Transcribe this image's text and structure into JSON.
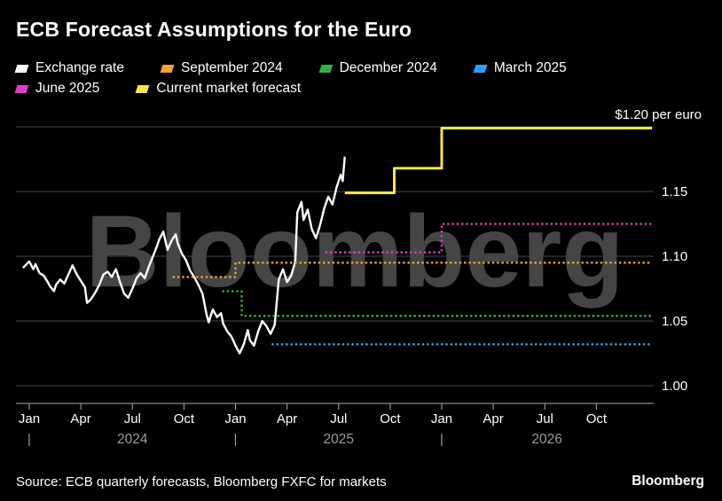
{
  "title": "ECB Forecast Assumptions for the Euro",
  "watermark": "Bloomberg",
  "footer": {
    "source": "Source: ECB quarterly forecasts, Bloomberg FXFC for markets",
    "brand": "Bloomberg"
  },
  "legend": {
    "rows": [
      [
        {
          "label": "Exchange rate",
          "color": "#ffffff"
        },
        {
          "label": "September 2024",
          "color": "#f2a13c"
        },
        {
          "label": "December 2024",
          "color": "#2eb347"
        },
        {
          "label": "March 2025",
          "color": "#339ef5"
        }
      ],
      [
        {
          "label": "June 2025",
          "color": "#e23bc8"
        },
        {
          "label": "Current market forecast",
          "color": "#f5e642"
        }
      ]
    ]
  },
  "chart_data": {
    "type": "line",
    "x_unit": "decimal_year",
    "x_range": [
      2023.97,
      2027.02
    ],
    "ylim": [
      0.985,
      1.21
    ],
    "grid": true,
    "y_ticks": [
      {
        "v": 1.0,
        "label": "1.00"
      },
      {
        "v": 1.05,
        "label": "1.05"
      },
      {
        "v": 1.1,
        "label": "1.10"
      },
      {
        "v": 1.15,
        "label": "1.15"
      },
      {
        "v": 1.2,
        "label": "$1.20 per euro",
        "top": true
      }
    ],
    "x_ticks": [
      {
        "t": 2024.0,
        "label": "Jan"
      },
      {
        "t": 2024.25,
        "label": "Apr"
      },
      {
        "t": 2024.5,
        "label": "Jul"
      },
      {
        "t": 2024.75,
        "label": "Oct"
      },
      {
        "t": 2025.0,
        "label": "Jan"
      },
      {
        "t": 2025.25,
        "label": "Apr"
      },
      {
        "t": 2025.5,
        "label": "Jul"
      },
      {
        "t": 2025.75,
        "label": "Oct"
      },
      {
        "t": 2026.0,
        "label": "Jan"
      },
      {
        "t": 2026.25,
        "label": "Apr"
      },
      {
        "t": 2026.5,
        "label": "Jul"
      },
      {
        "t": 2026.75,
        "label": "Oct"
      }
    ],
    "year_separators": [
      2024.0,
      2025.0,
      2026.0
    ],
    "year_labels": [
      {
        "t": 2024.5,
        "label": "2024"
      },
      {
        "t": 2025.5,
        "label": "2025"
      },
      {
        "t": 2026.51,
        "label": "2026"
      }
    ],
    "series": [
      {
        "name": "Exchange rate",
        "color": "#ffffff",
        "style": "solid",
        "width": 2.4,
        "points": [
          [
            2023.97,
            1.091
          ],
          [
            2024.0,
            1.096
          ],
          [
            2024.02,
            1.09
          ],
          [
            2024.03,
            1.094
          ],
          [
            2024.05,
            1.087
          ],
          [
            2024.07,
            1.085
          ],
          [
            2024.09,
            1.08
          ],
          [
            2024.1,
            1.077
          ],
          [
            2024.12,
            1.073
          ],
          [
            2024.13,
            1.078
          ],
          [
            2024.15,
            1.082
          ],
          [
            2024.17,
            1.079
          ],
          [
            2024.19,
            1.086
          ],
          [
            2024.21,
            1.093
          ],
          [
            2024.23,
            1.086
          ],
          [
            2024.25,
            1.081
          ],
          [
            2024.27,
            1.076
          ],
          [
            2024.28,
            1.064
          ],
          [
            2024.3,
            1.067
          ],
          [
            2024.32,
            1.072
          ],
          [
            2024.34,
            1.078
          ],
          [
            2024.36,
            1.086
          ],
          [
            2024.38,
            1.088
          ],
          [
            2024.4,
            1.084
          ],
          [
            2024.42,
            1.09
          ],
          [
            2024.44,
            1.08
          ],
          [
            2024.46,
            1.071
          ],
          [
            2024.48,
            1.068
          ],
          [
            2024.5,
            1.075
          ],
          [
            2024.52,
            1.083
          ],
          [
            2024.54,
            1.087
          ],
          [
            2024.56,
            1.083
          ],
          [
            2024.58,
            1.092
          ],
          [
            2024.6,
            1.1
          ],
          [
            2024.62,
            1.108
          ],
          [
            2024.63,
            1.113
          ],
          [
            2024.65,
            1.119
          ],
          [
            2024.67,
            1.105
          ],
          [
            2024.69,
            1.112
          ],
          [
            2024.71,
            1.117
          ],
          [
            2024.72,
            1.11
          ],
          [
            2024.74,
            1.102
          ],
          [
            2024.76,
            1.097
          ],
          [
            2024.78,
            1.089
          ],
          [
            2024.8,
            1.084
          ],
          [
            2024.82,
            1.078
          ],
          [
            2024.84,
            1.071
          ],
          [
            2024.86,
            1.055
          ],
          [
            2024.87,
            1.049
          ],
          [
            2024.89,
            1.059
          ],
          [
            2024.91,
            1.053
          ],
          [
            2024.93,
            1.056
          ],
          [
            2024.94,
            1.048
          ],
          [
            2024.96,
            1.042
          ],
          [
            2024.98,
            1.038
          ],
          [
            2025.0,
            1.031
          ],
          [
            2025.02,
            1.025
          ],
          [
            2025.04,
            1.032
          ],
          [
            2025.06,
            1.043
          ],
          [
            2025.07,
            1.035
          ],
          [
            2025.09,
            1.031
          ],
          [
            2025.11,
            1.042
          ],
          [
            2025.13,
            1.05
          ],
          [
            2025.15,
            1.046
          ],
          [
            2025.17,
            1.04
          ],
          [
            2025.19,
            1.047
          ],
          [
            2025.21,
            1.082
          ],
          [
            2025.23,
            1.09
          ],
          [
            2025.25,
            1.08
          ],
          [
            2025.27,
            1.085
          ],
          [
            2025.29,
            1.096
          ],
          [
            2025.3,
            1.134
          ],
          [
            2025.32,
            1.142
          ],
          [
            2025.33,
            1.128
          ],
          [
            2025.35,
            1.136
          ],
          [
            2025.37,
            1.121
          ],
          [
            2025.39,
            1.114
          ],
          [
            2025.41,
            1.124
          ],
          [
            2025.43,
            1.137
          ],
          [
            2025.45,
            1.146
          ],
          [
            2025.47,
            1.14
          ],
          [
            2025.49,
            1.153
          ],
          [
            2025.51,
            1.163
          ],
          [
            2025.52,
            1.158
          ],
          [
            2025.53,
            1.177
          ]
        ]
      },
      {
        "name": "September 2024",
        "color": "#f2a13c",
        "style": "dotted",
        "width": 2.6,
        "points": [
          [
            2024.7,
            1.084
          ],
          [
            2025.0,
            1.084
          ],
          [
            2025.0,
            1.095
          ],
          [
            2027.02,
            1.095
          ]
        ]
      },
      {
        "name": "December 2024",
        "color": "#2eb347",
        "style": "dotted",
        "width": 2.6,
        "points": [
          [
            2024.94,
            1.073
          ],
          [
            2025.03,
            1.073
          ],
          [
            2025.03,
            1.054
          ],
          [
            2027.02,
            1.054
          ]
        ]
      },
      {
        "name": "March 2025",
        "color": "#339ef5",
        "style": "dotted",
        "width": 2.6,
        "points": [
          [
            2025.18,
            1.032
          ],
          [
            2027.02,
            1.032
          ]
        ]
      },
      {
        "name": "June 2025",
        "color": "#e23bc8",
        "style": "dotted",
        "width": 2.6,
        "points": [
          [
            2025.44,
            1.103
          ],
          [
            2026.0,
            1.103
          ],
          [
            2026.0,
            1.125
          ],
          [
            2027.02,
            1.125
          ]
        ]
      },
      {
        "name": "Current market forecast",
        "color": "#f5e642",
        "style": "solid",
        "width": 3,
        "points": [
          [
            2025.53,
            1.149
          ],
          [
            2025.77,
            1.149
          ],
          [
            2025.77,
            1.168
          ],
          [
            2026.0,
            1.168
          ],
          [
            2026.0,
            1.199
          ],
          [
            2027.02,
            1.199
          ]
        ]
      }
    ]
  }
}
